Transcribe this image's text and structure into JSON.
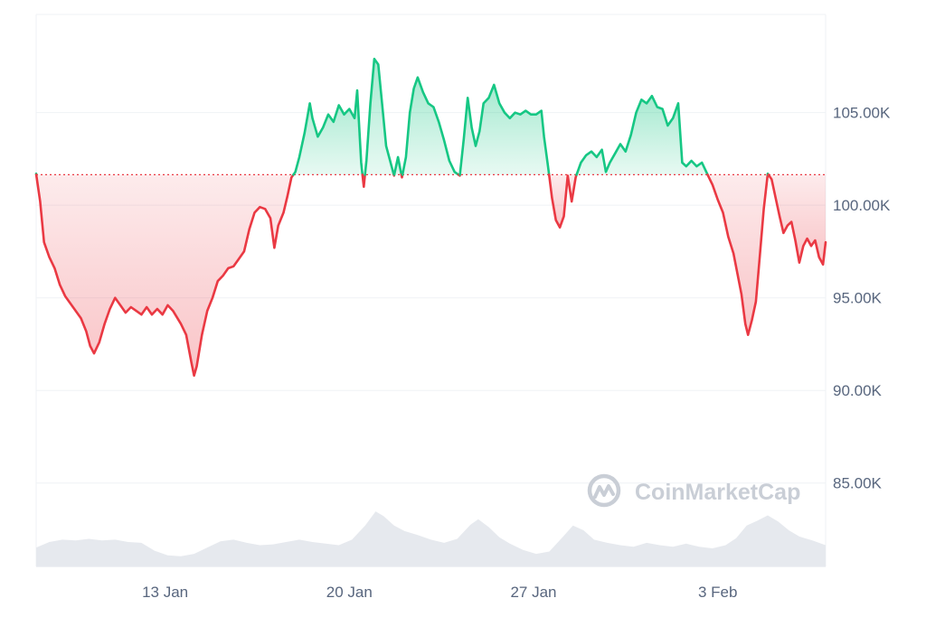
{
  "watermark": {
    "text": "CoinMarketCap"
  },
  "colors": {
    "up": "#16c784",
    "down": "#ea3943",
    "baseline": "#ea3943",
    "grid": "#eff2f5",
    "axis_text": "#58667e",
    "volume": "#e6e9ee"
  },
  "chart_data": {
    "type": "line",
    "title": "",
    "xlabel": "",
    "ylabel": "",
    "x_tick_labels": [
      "13 Jan",
      "20 Jan",
      "27 Jan",
      "3 Feb"
    ],
    "x_tick_values": [
      4.9,
      11.9,
      18.9,
      25.9
    ],
    "y_tick_labels": [
      "85.00K",
      "90.00K",
      "95.00K",
      "100.00K",
      "105.00K"
    ],
    "y_tick_values": [
      85000,
      90000,
      95000,
      100000,
      105000
    ],
    "ylim": [
      80500,
      110300
    ],
    "xlim": [
      0,
      30
    ],
    "baseline": 101650,
    "grid": "horizontal",
    "legend": "none",
    "series": [
      {
        "values": [
          [
            0.0,
            101700
          ],
          [
            0.15,
            100200
          ],
          [
            0.3,
            98000
          ],
          [
            0.5,
            97200
          ],
          [
            0.7,
            96600
          ],
          [
            0.9,
            95700
          ],
          [
            1.1,
            95100
          ],
          [
            1.3,
            94700
          ],
          [
            1.5,
            94300
          ],
          [
            1.7,
            93900
          ],
          [
            1.9,
            93200
          ],
          [
            2.05,
            92400
          ],
          [
            2.2,
            92000
          ],
          [
            2.4,
            92600
          ],
          [
            2.6,
            93600
          ],
          [
            2.8,
            94400
          ],
          [
            3.0,
            95000
          ],
          [
            3.2,
            94600
          ],
          [
            3.4,
            94200
          ],
          [
            3.6,
            94500
          ],
          [
            3.8,
            94300
          ],
          [
            4.0,
            94100
          ],
          [
            4.2,
            94500
          ],
          [
            4.4,
            94100
          ],
          [
            4.6,
            94400
          ],
          [
            4.8,
            94100
          ],
          [
            5.0,
            94600
          ],
          [
            5.2,
            94300
          ],
          [
            5.5,
            93600
          ],
          [
            5.7,
            93000
          ],
          [
            5.9,
            91500
          ],
          [
            6.0,
            90800
          ],
          [
            6.1,
            91300
          ],
          [
            6.3,
            93000
          ],
          [
            6.5,
            94300
          ],
          [
            6.7,
            95000
          ],
          [
            6.9,
            95900
          ],
          [
            7.1,
            96200
          ],
          [
            7.3,
            96600
          ],
          [
            7.5,
            96700
          ],
          [
            7.7,
            97100
          ],
          [
            7.9,
            97500
          ],
          [
            8.1,
            98700
          ],
          [
            8.3,
            99600
          ],
          [
            8.5,
            99900
          ],
          [
            8.7,
            99800
          ],
          [
            8.9,
            99300
          ],
          [
            9.05,
            97700
          ],
          [
            9.2,
            98900
          ],
          [
            9.4,
            99600
          ],
          [
            9.55,
            100500
          ],
          [
            9.7,
            101500
          ],
          [
            9.85,
            101800
          ],
          [
            10.0,
            102600
          ],
          [
            10.2,
            103900
          ],
          [
            10.4,
            105500
          ],
          [
            10.5,
            104700
          ],
          [
            10.7,
            103700
          ],
          [
            10.9,
            104200
          ],
          [
            11.1,
            104900
          ],
          [
            11.3,
            104500
          ],
          [
            11.5,
            105400
          ],
          [
            11.7,
            104900
          ],
          [
            11.9,
            105200
          ],
          [
            12.1,
            104700
          ],
          [
            12.2,
            106200
          ],
          [
            12.35,
            102300
          ],
          [
            12.45,
            101000
          ],
          [
            12.55,
            102400
          ],
          [
            12.7,
            105500
          ],
          [
            12.85,
            107900
          ],
          [
            13.0,
            107600
          ],
          [
            13.15,
            105400
          ],
          [
            13.3,
            103200
          ],
          [
            13.45,
            102400
          ],
          [
            13.6,
            101600
          ],
          [
            13.75,
            102600
          ],
          [
            13.9,
            101500
          ],
          [
            14.05,
            102600
          ],
          [
            14.2,
            105000
          ],
          [
            14.35,
            106300
          ],
          [
            14.5,
            106900
          ],
          [
            14.7,
            106100
          ],
          [
            14.9,
            105500
          ],
          [
            15.1,
            105300
          ],
          [
            15.3,
            104500
          ],
          [
            15.5,
            103500
          ],
          [
            15.7,
            102400
          ],
          [
            15.9,
            101800
          ],
          [
            16.1,
            101600
          ],
          [
            16.25,
            103600
          ],
          [
            16.4,
            105800
          ],
          [
            16.55,
            104200
          ],
          [
            16.7,
            103200
          ],
          [
            16.85,
            104000
          ],
          [
            17.0,
            105500
          ],
          [
            17.2,
            105800
          ],
          [
            17.4,
            106500
          ],
          [
            17.6,
            105500
          ],
          [
            17.8,
            105000
          ],
          [
            18.0,
            104700
          ],
          [
            18.2,
            105000
          ],
          [
            18.4,
            104900
          ],
          [
            18.6,
            105100
          ],
          [
            18.8,
            104900
          ],
          [
            19.0,
            104900
          ],
          [
            19.2,
            105100
          ],
          [
            19.3,
            103700
          ],
          [
            19.45,
            102100
          ],
          [
            19.6,
            100400
          ],
          [
            19.75,
            99200
          ],
          [
            19.9,
            98800
          ],
          [
            20.05,
            99400
          ],
          [
            20.2,
            101600
          ],
          [
            20.35,
            100200
          ],
          [
            20.5,
            101500
          ],
          [
            20.7,
            102300
          ],
          [
            20.9,
            102700
          ],
          [
            21.1,
            102900
          ],
          [
            21.3,
            102600
          ],
          [
            21.5,
            103000
          ],
          [
            21.65,
            101800
          ],
          [
            21.8,
            102300
          ],
          [
            22.0,
            102800
          ],
          [
            22.2,
            103300
          ],
          [
            22.4,
            102900
          ],
          [
            22.6,
            103800
          ],
          [
            22.8,
            105000
          ],
          [
            23.0,
            105700
          ],
          [
            23.2,
            105500
          ],
          [
            23.4,
            105900
          ],
          [
            23.6,
            105300
          ],
          [
            23.8,
            105200
          ],
          [
            24.0,
            104300
          ],
          [
            24.2,
            104700
          ],
          [
            24.4,
            105500
          ],
          [
            24.55,
            102300
          ],
          [
            24.7,
            102100
          ],
          [
            24.9,
            102400
          ],
          [
            25.1,
            102100
          ],
          [
            25.3,
            102300
          ],
          [
            25.5,
            101700
          ],
          [
            25.7,
            101100
          ],
          [
            25.9,
            100300
          ],
          [
            26.1,
            99600
          ],
          [
            26.3,
            98300
          ],
          [
            26.5,
            97400
          ],
          [
            26.65,
            96300
          ],
          [
            26.8,
            95200
          ],
          [
            26.95,
            93600
          ],
          [
            27.05,
            93000
          ],
          [
            27.2,
            93800
          ],
          [
            27.35,
            94800
          ],
          [
            27.5,
            97300
          ],
          [
            27.65,
            99800
          ],
          [
            27.8,
            101700
          ],
          [
            27.95,
            101400
          ],
          [
            28.1,
            100400
          ],
          [
            28.25,
            99400
          ],
          [
            28.4,
            98500
          ],
          [
            28.55,
            98900
          ],
          [
            28.7,
            99100
          ],
          [
            28.85,
            98100
          ],
          [
            29.0,
            96900
          ],
          [
            29.15,
            97800
          ],
          [
            29.3,
            98200
          ],
          [
            29.45,
            97800
          ],
          [
            29.6,
            98100
          ],
          [
            29.75,
            97200
          ],
          [
            29.9,
            96800
          ],
          [
            30.0,
            98000
          ]
        ]
      }
    ],
    "volume": {
      "ylim": [
        0,
        100
      ],
      "values": [
        [
          0.0,
          24
        ],
        [
          0.5,
          31
        ],
        [
          1.0,
          34
        ],
        [
          1.5,
          33
        ],
        [
          2.0,
          35
        ],
        [
          2.5,
          33
        ],
        [
          3.0,
          34
        ],
        [
          3.5,
          31
        ],
        [
          4.0,
          30
        ],
        [
          4.5,
          20
        ],
        [
          5.0,
          14
        ],
        [
          5.5,
          13
        ],
        [
          6.0,
          16
        ],
        [
          6.5,
          24
        ],
        [
          7.0,
          32
        ],
        [
          7.5,
          34
        ],
        [
          8.0,
          30
        ],
        [
          8.5,
          27
        ],
        [
          9.0,
          28
        ],
        [
          9.5,
          31
        ],
        [
          10.0,
          34
        ],
        [
          10.5,
          31
        ],
        [
          11.0,
          29
        ],
        [
          11.5,
          27
        ],
        [
          12.0,
          34
        ],
        [
          12.5,
          52
        ],
        [
          12.9,
          70
        ],
        [
          13.2,
          64
        ],
        [
          13.6,
          52
        ],
        [
          14.0,
          45
        ],
        [
          14.5,
          40
        ],
        [
          15.0,
          34
        ],
        [
          15.5,
          30
        ],
        [
          16.0,
          35
        ],
        [
          16.5,
          53
        ],
        [
          16.8,
          60
        ],
        [
          17.2,
          50
        ],
        [
          17.6,
          37
        ],
        [
          18.0,
          29
        ],
        [
          18.5,
          21
        ],
        [
          19.0,
          16
        ],
        [
          19.5,
          19
        ],
        [
          20.0,
          37
        ],
        [
          20.4,
          52
        ],
        [
          20.8,
          46
        ],
        [
          21.2,
          34
        ],
        [
          21.7,
          30
        ],
        [
          22.2,
          27
        ],
        [
          22.7,
          25
        ],
        [
          23.2,
          30
        ],
        [
          23.7,
          27
        ],
        [
          24.2,
          25
        ],
        [
          24.7,
          29
        ],
        [
          25.2,
          25
        ],
        [
          25.7,
          23
        ],
        [
          26.2,
          27
        ],
        [
          26.6,
          36
        ],
        [
          27.0,
          52
        ],
        [
          27.4,
          58
        ],
        [
          27.8,
          65
        ],
        [
          28.2,
          57
        ],
        [
          28.6,
          46
        ],
        [
          29.0,
          38
        ],
        [
          29.5,
          33
        ],
        [
          30.0,
          27
        ]
      ]
    }
  }
}
